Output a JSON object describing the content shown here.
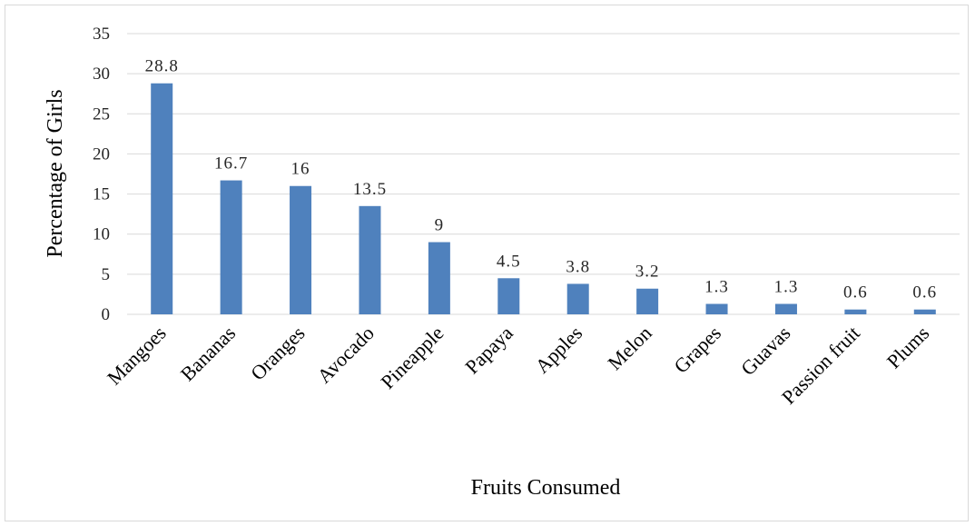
{
  "chart_data": {
    "type": "bar",
    "title": "",
    "xlabel": "Fruits Consumed",
    "ylabel": "Percentage of Girls",
    "categories": [
      "Mangoes",
      "Bananas",
      "Oranges",
      "Avocado",
      "Pineapple",
      "Papaya",
      "Apples",
      "Melon",
      "Grapes",
      "Guavas",
      "Passion fruit",
      "Plums"
    ],
    "values": [
      28.8,
      16.7,
      16,
      13.5,
      9,
      4.5,
      3.8,
      3.2,
      1.3,
      1.3,
      0.6,
      0.6
    ],
    "data_labels": [
      "28.8",
      "16.7",
      "16",
      "13.5",
      "9",
      "4.5",
      "3.8",
      "3.2",
      "1.3",
      "1.3",
      "0.6",
      "0.6"
    ],
    "ylim": [
      0,
      35
    ],
    "yticks": [
      0,
      5,
      10,
      15,
      20,
      25,
      30,
      35
    ],
    "grid": "horizontal",
    "legend": "none",
    "bar_color": "#4f81bd",
    "grid_color": "#d9d9d9"
  }
}
